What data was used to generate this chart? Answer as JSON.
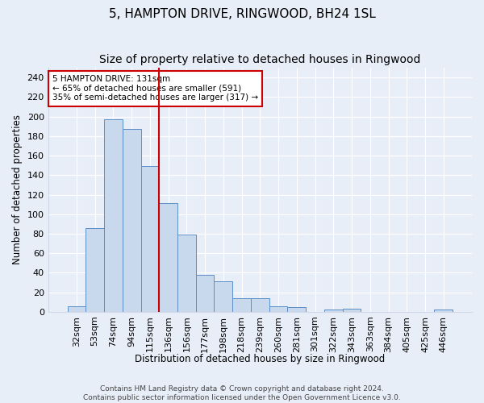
{
  "title": "5, HAMPTON DRIVE, RINGWOOD, BH24 1SL",
  "subtitle": "Size of property relative to detached houses in Ringwood",
  "xlabel": "Distribution of detached houses by size in Ringwood",
  "ylabel": "Number of detached properties",
  "bar_labels": [
    "32sqm",
    "53sqm",
    "74sqm",
    "94sqm",
    "115sqm",
    "136sqm",
    "156sqm",
    "177sqm",
    "198sqm",
    "218sqm",
    "239sqm",
    "260sqm",
    "281sqm",
    "301sqm",
    "322sqm",
    "343sqm",
    "363sqm",
    "384sqm",
    "405sqm",
    "425sqm",
    "446sqm"
  ],
  "bar_values": [
    6,
    86,
    197,
    187,
    149,
    111,
    79,
    38,
    31,
    14,
    14,
    6,
    5,
    0,
    2,
    3,
    0,
    0,
    0,
    0,
    2
  ],
  "bar_color": "#c8d9ee",
  "bar_edge_color": "#5b8fc7",
  "vline_color": "#cc0000",
  "vline_x_index": 5,
  "annotation_text": "5 HAMPTON DRIVE: 131sqm\n← 65% of detached houses are smaller (591)\n35% of semi-detached houses are larger (317) →",
  "annotation_box_color": "white",
  "annotation_box_edge_color": "#cc0000",
  "ylim": [
    0,
    250
  ],
  "yticks": [
    0,
    20,
    40,
    60,
    80,
    100,
    120,
    140,
    160,
    180,
    200,
    220,
    240
  ],
  "footer_line1": "Contains HM Land Registry data © Crown copyright and database right 2024.",
  "footer_line2": "Contains public sector information licensed under the Open Government Licence v3.0.",
  "bg_color": "#e8eef8",
  "grid_color": "#d0d8e8",
  "title_fontsize": 11,
  "subtitle_fontsize": 10,
  "label_fontsize": 8.5,
  "tick_fontsize": 8,
  "footer_fontsize": 6.5
}
